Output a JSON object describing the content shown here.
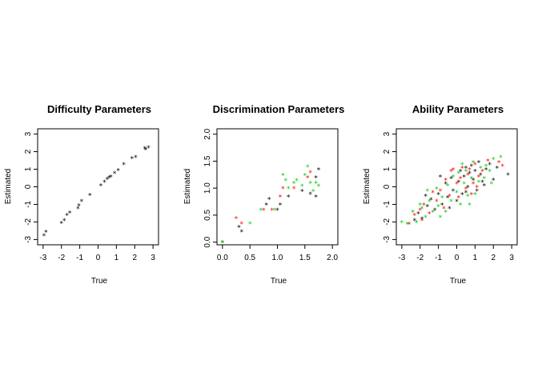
{
  "chart_data": [
    {
      "type": "scatter",
      "title": "Difficulty Parameters",
      "xlabel": "True",
      "ylabel": "Estimated",
      "xlim": [
        -3.3,
        3.3
      ],
      "ylim": [
        -3.3,
        3.3
      ],
      "xticks": [
        -3,
        -2,
        -1,
        0,
        1,
        2,
        3
      ],
      "yticks": [
        -3,
        -2,
        -1,
        0,
        1,
        2,
        3
      ],
      "marker": "*",
      "series": [
        {
          "color": "#000000",
          "points": [
            [
              -2.95,
              -2.75
            ],
            [
              -2.85,
              -2.55
            ],
            [
              -2.0,
              -2.05
            ],
            [
              -1.85,
              -1.9
            ],
            [
              -1.7,
              -1.6
            ],
            [
              -1.55,
              -1.45
            ],
            [
              -1.1,
              -1.2
            ],
            [
              -1.05,
              -1.05
            ],
            [
              -0.9,
              -0.8
            ],
            [
              -0.45,
              -0.45
            ],
            [
              0.15,
              0.1
            ],
            [
              0.35,
              0.3
            ],
            [
              0.5,
              0.45
            ],
            [
              0.6,
              0.55
            ],
            [
              0.7,
              0.6
            ],
            [
              0.9,
              0.8
            ],
            [
              1.1,
              0.95
            ],
            [
              1.4,
              1.3
            ],
            [
              1.85,
              1.65
            ],
            [
              2.05,
              1.7
            ],
            [
              2.55,
              2.2
            ],
            [
              2.6,
              2.15
            ],
            [
              2.75,
              2.25
            ]
          ]
        }
      ]
    },
    {
      "type": "scatter",
      "title": "Discrimination Parameters",
      "xlabel": "True",
      "ylabel": "Estimated",
      "xlim": [
        -0.1,
        2.1
      ],
      "ylim": [
        -0.05,
        2.1
      ],
      "xticks": [
        0.0,
        0.5,
        1.0,
        1.5,
        2.0
      ],
      "yticks": [
        0.0,
        0.5,
        1.0,
        1.5,
        2.0
      ],
      "marker": "*",
      "series": [
        {
          "color": "#000000",
          "points": [
            [
              0.0,
              0.0
            ],
            [
              0.3,
              0.28
            ],
            [
              0.35,
              0.2
            ],
            [
              0.8,
              0.7
            ],
            [
              0.85,
              0.8
            ],
            [
              1.0,
              0.6
            ],
            [
              1.05,
              0.7
            ],
            [
              1.2,
              0.85
            ],
            [
              1.45,
              0.95
            ],
            [
              1.6,
              0.9
            ],
            [
              1.7,
              0.85
            ],
            [
              1.75,
              1.35
            ],
            [
              1.7,
              1.2
            ]
          ]
        },
        {
          "color": "#ff0000",
          "points": [
            [
              0.25,
              0.45
            ],
            [
              0.35,
              0.35
            ],
            [
              0.75,
              0.6
            ],
            [
              0.9,
              0.6
            ],
            [
              1.05,
              0.85
            ],
            [
              1.1,
              1.0
            ],
            [
              1.3,
              1.0
            ],
            [
              1.55,
              1.2
            ],
            [
              1.6,
              1.3
            ]
          ]
        },
        {
          "color": "#00cc00",
          "points": [
            [
              0.0,
              0.0
            ],
            [
              0.5,
              0.35
            ],
            [
              0.7,
              0.6
            ],
            [
              0.95,
              0.6
            ],
            [
              1.1,
              1.25
            ],
            [
              1.15,
              1.15
            ],
            [
              1.2,
              1.0
            ],
            [
              1.3,
              1.1
            ],
            [
              1.35,
              1.15
            ],
            [
              1.45,
              1.05
            ],
            [
              1.5,
              1.25
            ],
            [
              1.55,
              1.4
            ],
            [
              1.6,
              1.1
            ],
            [
              1.65,
              0.95
            ],
            [
              1.7,
              1.1
            ],
            [
              1.75,
              1.05
            ]
          ]
        }
      ]
    },
    {
      "type": "scatter",
      "title": "Ability Parameters",
      "xlabel": "True",
      "ylabel": "Estimated",
      "xlim": [
        -3.3,
        3.3
      ],
      "ylim": [
        -3.3,
        3.3
      ],
      "xticks": [
        -3,
        -2,
        -1,
        0,
        1,
        2,
        3
      ],
      "yticks": [
        -3,
        -2,
        -1,
        0,
        1,
        2,
        3
      ],
      "marker": "*",
      "series": [
        {
          "color": "#000000",
          "points": [
            [
              -2.3,
              -1.9
            ],
            [
              -2.1,
              -1.5
            ],
            [
              -1.9,
              -1.8
            ],
            [
              -1.6,
              -1.1
            ],
            [
              -1.4,
              -0.7
            ],
            [
              -1.2,
              -1.3
            ],
            [
              -1.0,
              -0.4
            ],
            [
              -0.8,
              -1.0
            ],
            [
              -0.6,
              0.2
            ],
            [
              -0.5,
              -0.6
            ],
            [
              -0.3,
              0.5
            ],
            [
              -0.2,
              -0.2
            ],
            [
              0.0,
              -0.8
            ],
            [
              0.1,
              0.3
            ],
            [
              0.2,
              0.9
            ],
            [
              0.3,
              -0.4
            ],
            [
              0.4,
              0.6
            ],
            [
              0.5,
              1.1
            ],
            [
              0.6,
              0.0
            ],
            [
              0.7,
              0.8
            ],
            [
              0.8,
              1.2
            ],
            [
              0.9,
              0.4
            ],
            [
              1.0,
              0.9
            ],
            [
              1.1,
              -0.2
            ],
            [
              1.2,
              1.4
            ],
            [
              1.3,
              0.7
            ],
            [
              1.4,
              0.3
            ],
            [
              1.6,
              1.0
            ],
            [
              1.8,
              1.3
            ],
            [
              2.0,
              0.4
            ],
            [
              2.2,
              1.1
            ],
            [
              2.8,
              0.7
            ],
            [
              -1.7,
              -0.5
            ],
            [
              -0.9,
              0.6
            ],
            [
              0.5,
              -0.3
            ],
            [
              1.5,
              0.1
            ],
            [
              -0.4,
              -1.2
            ]
          ]
        },
        {
          "color": "#ff0000",
          "points": [
            [
              -2.6,
              -2.1
            ],
            [
              -2.3,
              -1.6
            ],
            [
              -2.0,
              -1.3
            ],
            [
              -1.8,
              -1.0
            ],
            [
              -1.5,
              -1.5
            ],
            [
              -1.3,
              -0.3
            ],
            [
              -1.1,
              -0.8
            ],
            [
              -0.9,
              -0.2
            ],
            [
              -0.7,
              -1.2
            ],
            [
              -0.6,
              0.4
            ],
            [
              -0.4,
              -0.5
            ],
            [
              -0.2,
              1.0
            ],
            [
              0.0,
              0.2
            ],
            [
              0.1,
              -0.6
            ],
            [
              0.2,
              0.5
            ],
            [
              0.3,
              1.1
            ],
            [
              0.5,
              -0.1
            ],
            [
              0.6,
              0.7
            ],
            [
              0.7,
              1.0
            ],
            [
              0.9,
              0.2
            ],
            [
              1.0,
              1.3
            ],
            [
              1.2,
              0.6
            ],
            [
              1.4,
              0.9
            ],
            [
              1.7,
              1.5
            ],
            [
              2.3,
              1.4
            ],
            [
              2.5,
              1.2
            ],
            [
              -1.9,
              -1.9
            ],
            [
              -0.3,
              0.9
            ],
            [
              0.8,
              -0.4
            ],
            [
              1.1,
              0.0
            ]
          ]
        },
        {
          "color": "#00cc00",
          "points": [
            [
              -3.0,
              -2.0
            ],
            [
              -2.7,
              -2.1
            ],
            [
              -2.4,
              -1.4
            ],
            [
              -2.2,
              -2.0
            ],
            [
              -1.9,
              -1.2
            ],
            [
              -1.7,
              -1.7
            ],
            [
              -1.5,
              -0.8
            ],
            [
              -1.3,
              -1.4
            ],
            [
              -1.1,
              -0.1
            ],
            [
              -1.0,
              -1.1
            ],
            [
              -0.8,
              -0.6
            ],
            [
              -0.6,
              -1.4
            ],
            [
              -0.5,
              0.1
            ],
            [
              -0.3,
              -0.8
            ],
            [
              -0.2,
              0.6
            ],
            [
              0.0,
              -0.3
            ],
            [
              0.1,
              0.8
            ],
            [
              0.2,
              -1.0
            ],
            [
              0.4,
              0.2
            ],
            [
              0.5,
              0.9
            ],
            [
              0.6,
              -0.5
            ],
            [
              0.8,
              0.5
            ],
            [
              0.9,
              1.4
            ],
            [
              1.0,
              -0.4
            ],
            [
              1.2,
              0.3
            ],
            [
              1.3,
              1.1
            ],
            [
              1.5,
              0.5
            ],
            [
              1.6,
              1.2
            ],
            [
              1.8,
              0.9
            ],
            [
              2.0,
              1.6
            ],
            [
              2.4,
              1.7
            ],
            [
              -1.6,
              -0.2
            ],
            [
              -0.9,
              -1.7
            ],
            [
              0.3,
              1.3
            ],
            [
              1.9,
              0.2
            ],
            [
              -2.0,
              -1.0
            ],
            [
              0.7,
              -1.0
            ]
          ]
        }
      ]
    }
  ]
}
